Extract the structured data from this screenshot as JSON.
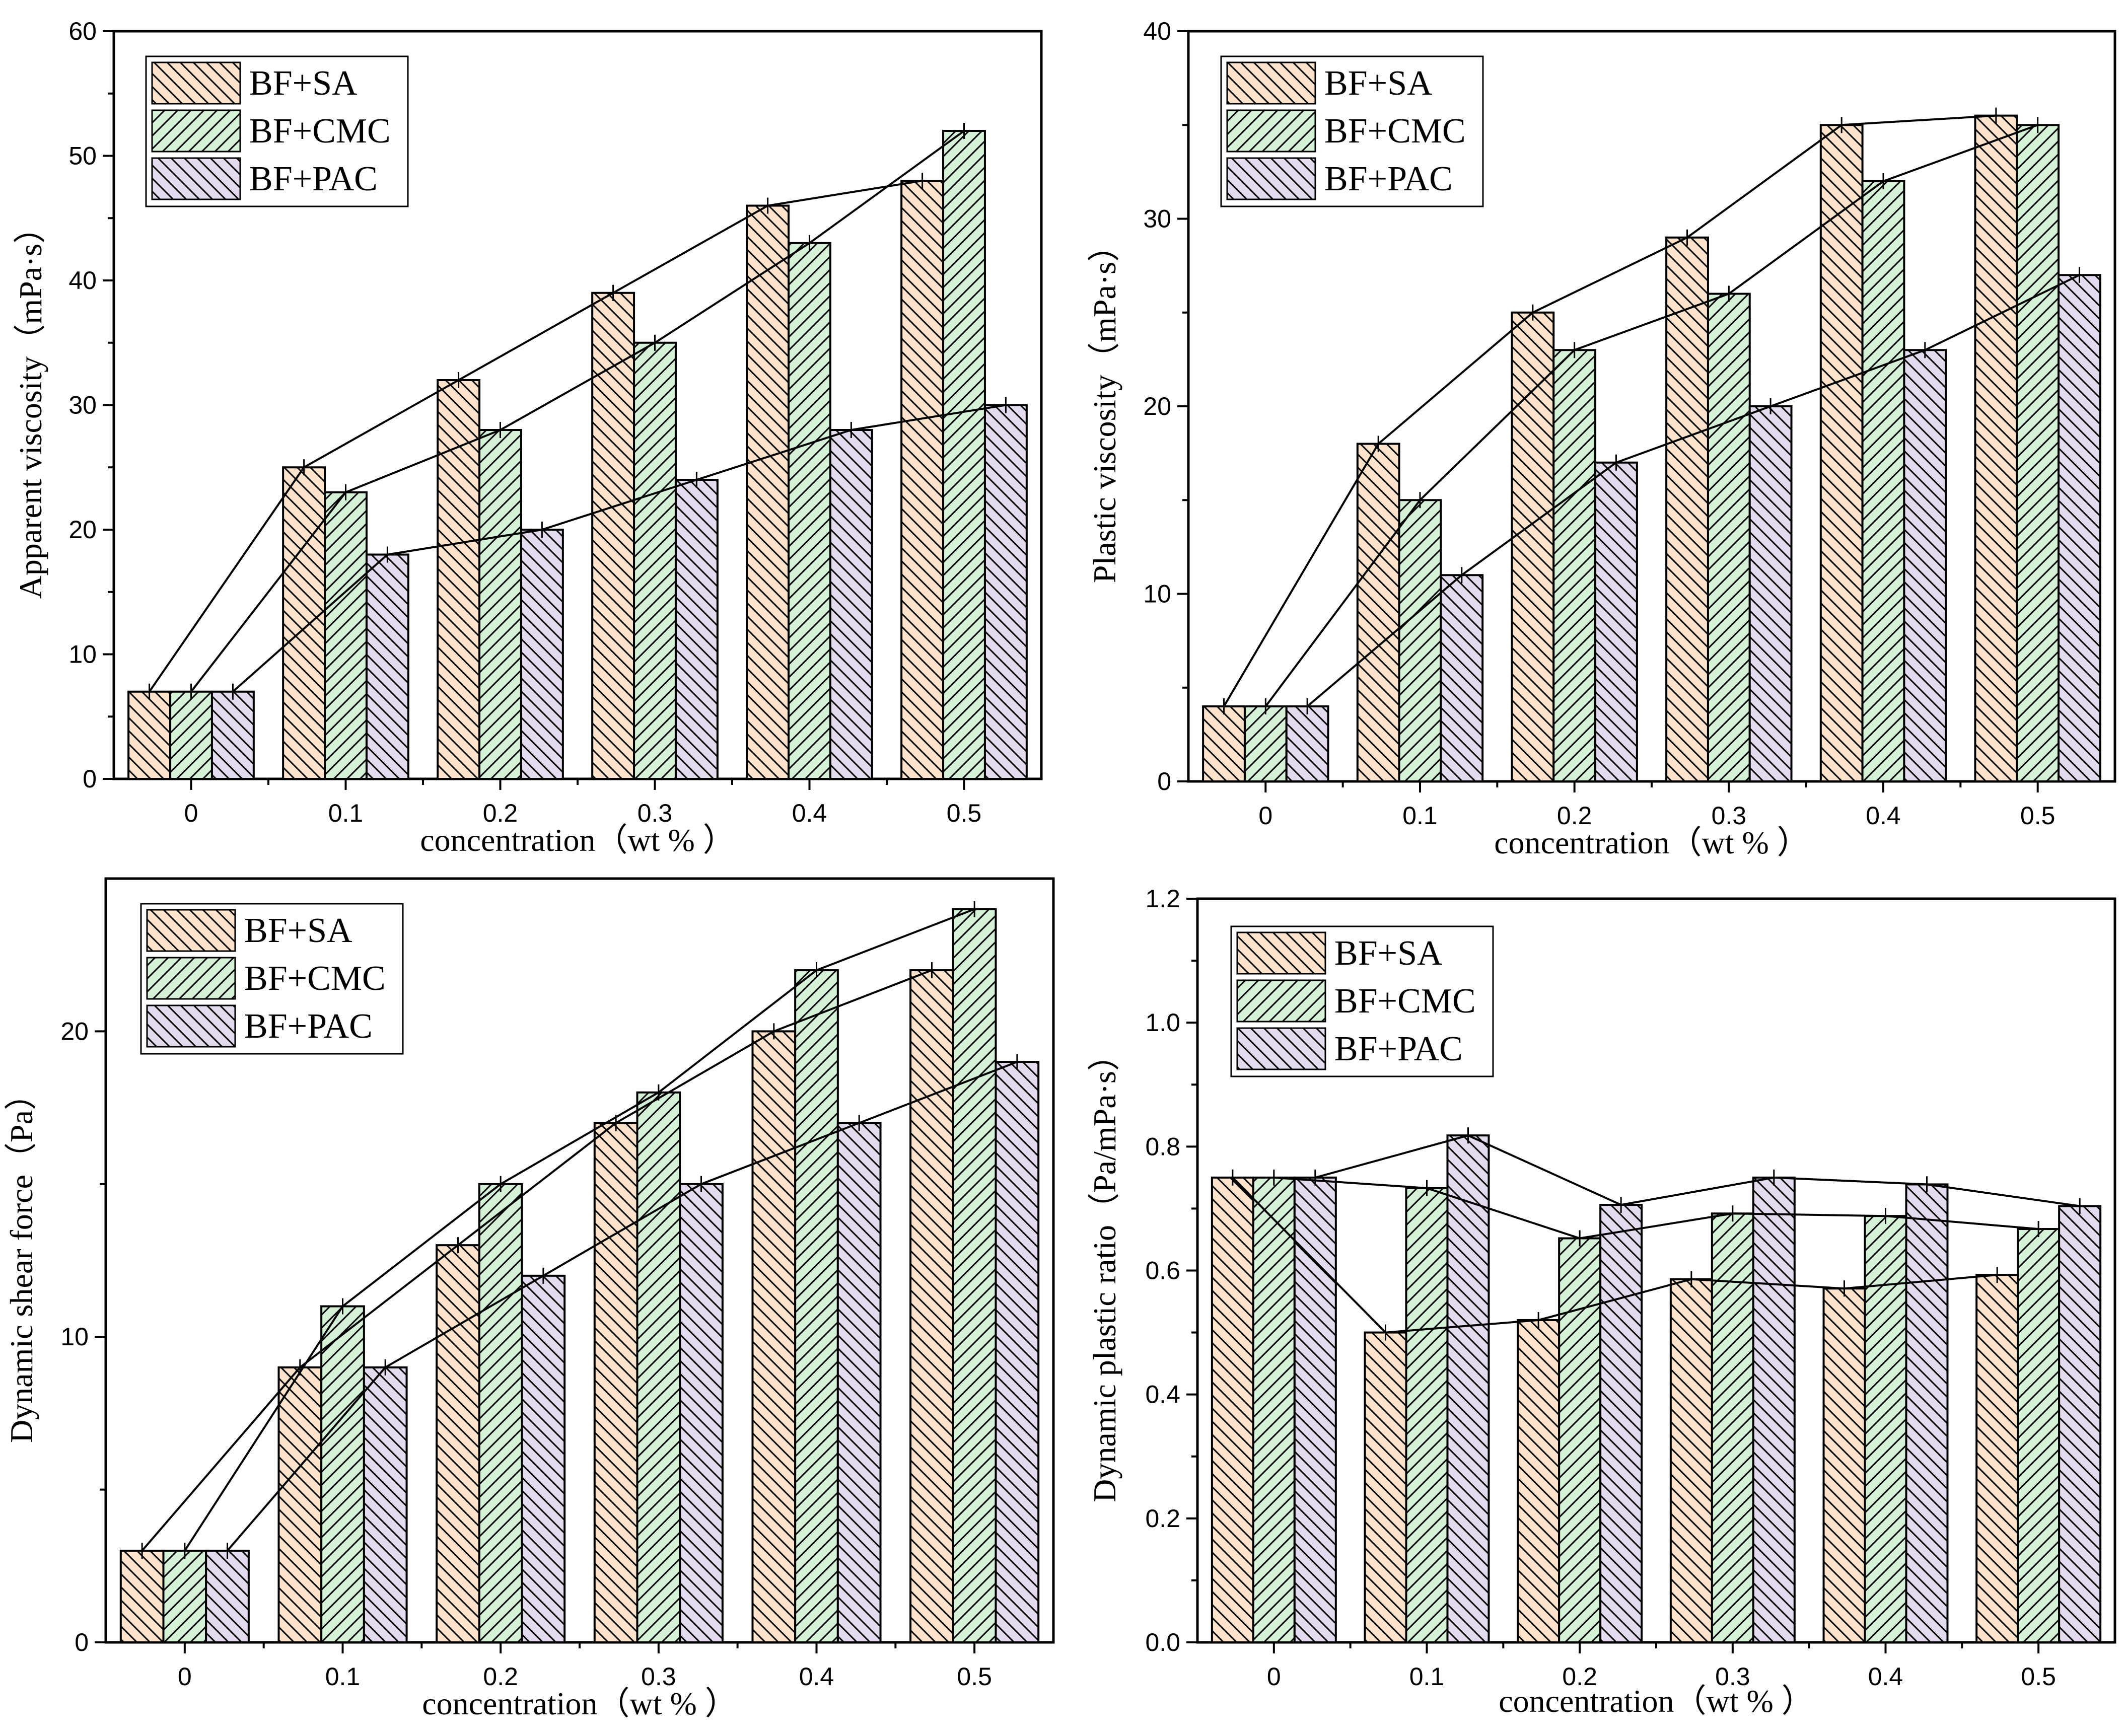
{
  "chart_data": [
    {
      "type": "bar",
      "categories": [
        "0",
        "0.1",
        "0.2",
        "0.3",
        "0.4",
        "0.5"
      ],
      "series": [
        {
          "name": "BF+SA",
          "values": [
            7,
            25,
            32,
            39,
            46,
            48
          ]
        },
        {
          "name": "BF+CMC",
          "values": [
            7,
            23,
            28,
            35,
            43,
            52
          ]
        },
        {
          "name": "BF+PAC",
          "values": [
            7,
            18,
            20,
            24,
            28,
            30
          ]
        }
      ],
      "title": "",
      "xlabel": "concentration（wt % ）",
      "ylabel": "Apparent viscosity（mPa·s）",
      "ylim": [
        0,
        60
      ],
      "yticks": [
        "0",
        "10",
        "20",
        "30",
        "40",
        "50",
        "60"
      ],
      "legend_position": "top-left"
    },
    {
      "type": "bar",
      "categories": [
        "0",
        "0.1",
        "0.2",
        "0.3",
        "0.4",
        "0.5"
      ],
      "series": [
        {
          "name": "BF+SA",
          "values": [
            4,
            18,
            25,
            29,
            35,
            35.5
          ]
        },
        {
          "name": "BF+CMC",
          "values": [
            4,
            15,
            23,
            26,
            32,
            35
          ]
        },
        {
          "name": "BF+PAC",
          "values": [
            4,
            11,
            17,
            20,
            23,
            27
          ]
        }
      ],
      "title": "",
      "xlabel": "concentration（wt % ）",
      "ylabel": "Plastic viscosity（mPa·s）",
      "ylim": [
        0,
        40
      ],
      "yticks": [
        "0",
        "10",
        "20",
        "30",
        "40"
      ],
      "legend_position": "top-left"
    },
    {
      "type": "bar",
      "categories": [
        "0",
        "0.1",
        "0.2",
        "0.3",
        "0.4",
        "0.5"
      ],
      "series": [
        {
          "name": "BF+SA",
          "values": [
            3,
            9,
            13,
            17,
            20,
            22
          ]
        },
        {
          "name": "BF+CMC",
          "values": [
            3,
            11,
            15,
            18,
            22,
            24
          ]
        },
        {
          "name": "BF+PAC",
          "values": [
            3,
            9,
            12,
            15,
            17,
            19
          ]
        }
      ],
      "title": "",
      "xlabel": "concentration（wt % ）",
      "ylabel": "Dynamic shear force（Pa）",
      "ylim": [
        0,
        25
      ],
      "yticks": [
        "0",
        "10",
        "20"
      ],
      "legend_position": "top-left"
    },
    {
      "type": "bar",
      "categories": [
        "0",
        "0.1",
        "0.2",
        "0.3",
        "0.4",
        "0.5"
      ],
      "series": [
        {
          "name": "BF+SA",
          "values": [
            0.75,
            0.5,
            0.52,
            0.586,
            0.571,
            0.593
          ]
        },
        {
          "name": "BF+CMC",
          "values": [
            0.75,
            0.733,
            0.652,
            0.692,
            0.688,
            0.667
          ]
        },
        {
          "name": "BF+PAC",
          "values": [
            0.75,
            0.818,
            0.706,
            0.75,
            0.739,
            0.704
          ]
        }
      ],
      "title": "",
      "xlabel": "concentration（wt % ）",
      "ylabel": "Dynamic plastic ratio（Pa/mPa·s）",
      "ylim": [
        0,
        1.2
      ],
      "yticks": [
        "0.0",
        "0.2",
        "0.4",
        "0.6",
        "0.8",
        "1.0",
        "1.2"
      ],
      "legend_position": "top-left"
    }
  ],
  "colors": {
    "BF+SA": "#fde3cc",
    "BF+CMC": "#d5f2d8",
    "BF+PAC": "#e4dbef",
    "hatch": "#000000"
  }
}
